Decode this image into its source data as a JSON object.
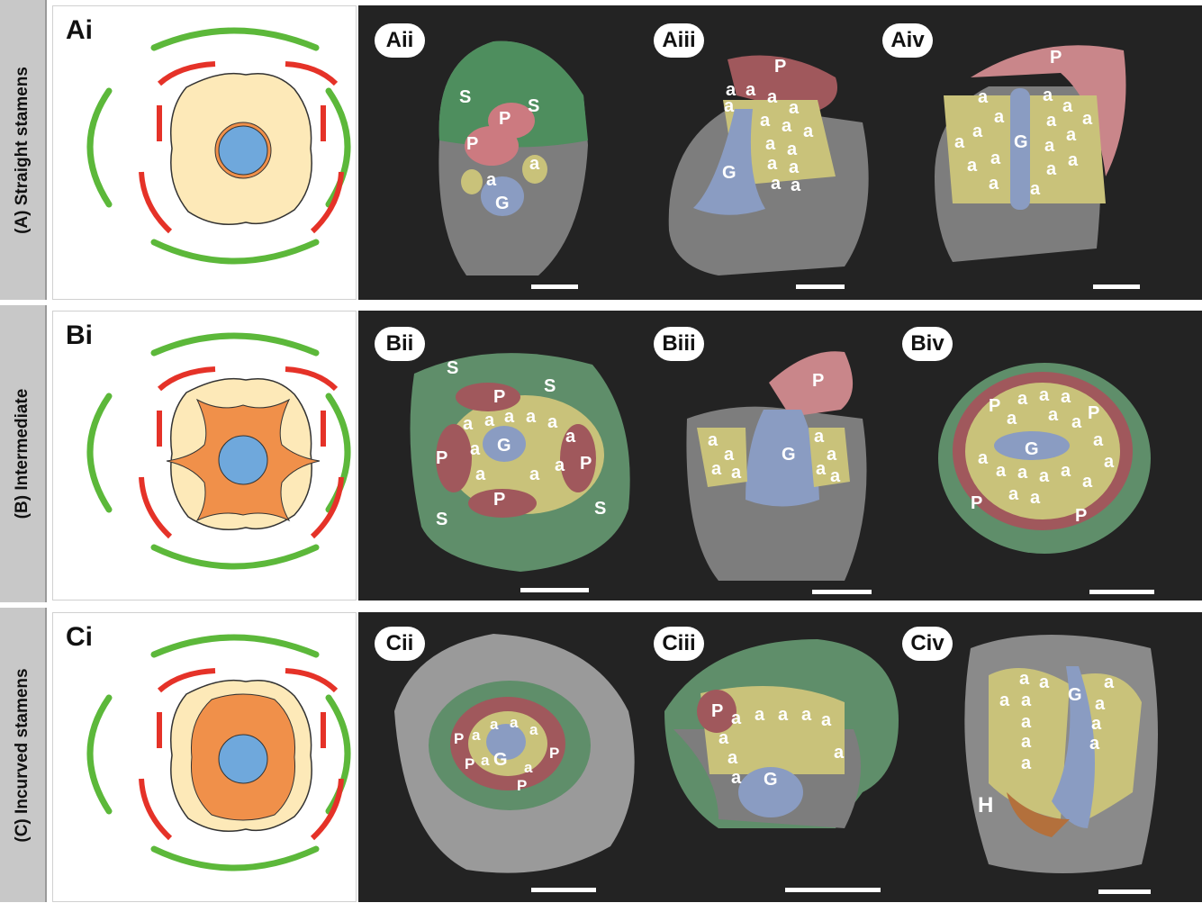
{
  "rows": [
    {
      "id": "A",
      "label": "(A) Straight stamens",
      "diagram_tag": "Ai",
      "colors": {
        "sepal": "#5cb83a",
        "petal": "#e53228",
        "receptacle": "#fde9b8",
        "ring": "#f0904a",
        "center": "#6fa8dc"
      },
      "panels": [
        {
          "tag": "Aii",
          "labels": [
            "S",
            "S",
            "P",
            "P",
            "a",
            "a",
            "G"
          ]
        },
        {
          "tag": "Aiii",
          "labels": [
            "P",
            "a",
            "a",
            "a",
            "a",
            "a",
            "a",
            "a",
            "a",
            "a",
            "a",
            "a",
            "a",
            "a",
            "a",
            "G"
          ]
        },
        {
          "tag": "Aiv",
          "labels": [
            "P",
            "a",
            "a",
            "a",
            "a",
            "a",
            "a",
            "a",
            "a",
            "a",
            "a",
            "a",
            "a",
            "a",
            "a",
            "a",
            "a",
            "G"
          ]
        }
      ]
    },
    {
      "id": "B",
      "label": "(B) Intermediate",
      "diagram_tag": "Bi",
      "panels": [
        {
          "tag": "Bii",
          "labels": [
            "S",
            "S",
            "S",
            "S",
            "P",
            "P",
            "P",
            "P",
            "a",
            "a",
            "a",
            "a",
            "a",
            "a",
            "a",
            "a",
            "a",
            "a",
            "G"
          ]
        },
        {
          "tag": "Biii",
          "labels": [
            "P",
            "G",
            "a",
            "a",
            "a",
            "a",
            "a",
            "a",
            "a",
            "a"
          ]
        },
        {
          "tag": "Biv",
          "labels": [
            "P",
            "P",
            "P",
            "P",
            "a",
            "a",
            "a",
            "a",
            "a",
            "a",
            "a",
            "a",
            "a",
            "a",
            "a",
            "a",
            "a",
            "a",
            "a",
            "a",
            "G"
          ]
        }
      ]
    },
    {
      "id": "C",
      "label": "(C) Incurved stamens",
      "diagram_tag": "Ci",
      "panels": [
        {
          "tag": "Cii",
          "labels": [
            "P",
            "P",
            "P",
            "P",
            "a",
            "a",
            "a",
            "a",
            "a",
            "a",
            "G"
          ]
        },
        {
          "tag": "Ciii",
          "labels": [
            "P",
            "a",
            "a",
            "a",
            "a",
            "a",
            "a",
            "a",
            "a",
            "a",
            "G"
          ]
        },
        {
          "tag": "Civ",
          "labels": [
            "a",
            "a",
            "a",
            "a",
            "a",
            "a",
            "a",
            "a",
            "a",
            "a",
            "a",
            "G",
            "H"
          ]
        }
      ]
    }
  ]
}
